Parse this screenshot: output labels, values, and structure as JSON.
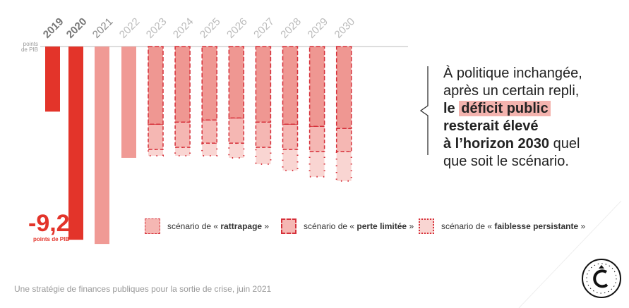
{
  "chart_data": {
    "type": "bar",
    "ylabel": "points de PIB",
    "categories": [
      "2019",
      "2020",
      "2021",
      "2022",
      "2023",
      "2024",
      "2025",
      "2026",
      "2027",
      "2028",
      "2029",
      "2030"
    ],
    "historical": [
      -3.1,
      -9.2,
      -9.4,
      -5.3,
      null,
      null,
      null,
      null,
      null,
      null,
      null,
      null
    ],
    "series": [
      {
        "name": "scénario de « rattrapage »",
        "values": [
          null,
          null,
          null,
          null,
          -3.7,
          -3.6,
          -3.5,
          -3.4,
          -3.6,
          -3.7,
          -3.8,
          -3.9
        ]
      },
      {
        "name": "scénario de « perte limitée »",
        "values": [
          null,
          null,
          null,
          null,
          -4.9,
          -4.8,
          -4.6,
          -4.6,
          -4.8,
          -4.9,
          -5.0,
          -5.0
        ]
      },
      {
        "name": "scénario de « faiblesse persistante »",
        "values": [
          null,
          null,
          null,
          null,
          -5.2,
          -5.2,
          -5.2,
          -5.3,
          -5.6,
          -5.9,
          -6.2,
          -6.4
        ]
      }
    ],
    "annotation_value": "-9,2",
    "annotation_unit": "points de PIB",
    "colors": {
      "dark": "#e3342a",
      "light": "#f09a95",
      "rattrapage": "#ef9792",
      "perte": "#f5b7b3",
      "faiblesse": "#f9d5d2"
    }
  },
  "legend": {
    "prefix": "scénario de «",
    "suffix": "»",
    "items": [
      "rattrapage",
      "perte limitée",
      "faiblesse persistante"
    ]
  },
  "message": {
    "l1": "À politique inchangée,",
    "l2": "après un certain repli,",
    "l3a": "le",
    "l3b": "déficit public",
    "l4": "resterait élevé",
    "l5a": "à l’horizon 2030",
    "l5b": "quel",
    "l6": "que soit le scénario."
  },
  "source": "Une stratégie de finances publiques pour la sortie de crise, juin 2021",
  "logo": "cour-des-comptes-seal"
}
